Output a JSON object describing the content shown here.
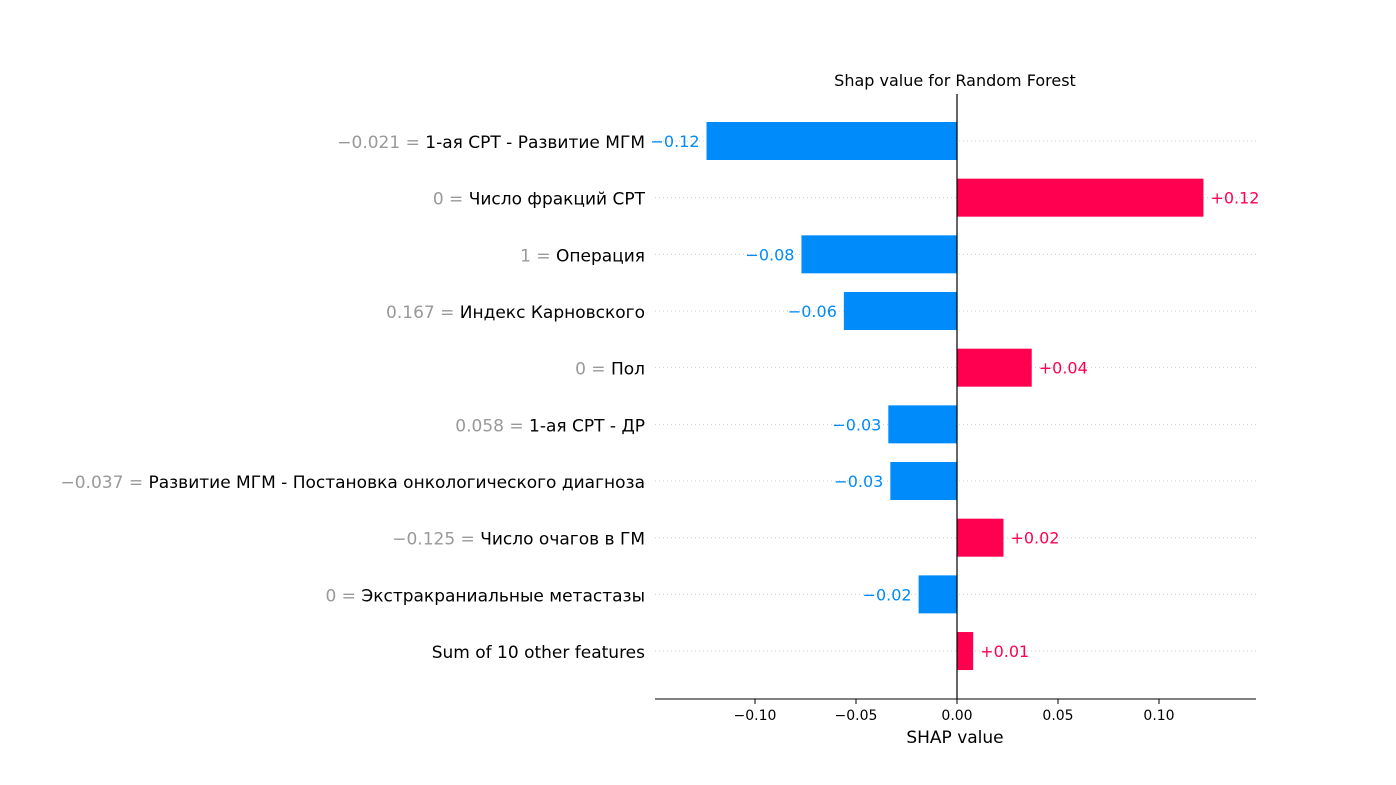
{
  "chart_data": {
    "type": "bar",
    "title": "Shap value for Random Forest",
    "xlabel": "SHAP value",
    "xlim": [
      -0.149,
      0.149
    ],
    "xticks": [
      -0.1,
      -0.05,
      0.0,
      0.05,
      0.1
    ],
    "xtick_labels": [
      "−0.10",
      "−0.05",
      "0.00",
      "0.05",
      "0.10"
    ],
    "features": [
      {
        "value_text": "−0.021 = ",
        "name": "1-ая СРТ - Развитие МГМ",
        "shap": -0.124,
        "label": "−0.12"
      },
      {
        "value_text": "0 = ",
        "name": "Число фракций СРТ",
        "shap": 0.122,
        "label": "+0.12"
      },
      {
        "value_text": "1 = ",
        "name": "Операция",
        "shap": -0.077,
        "label": "−0.08"
      },
      {
        "value_text": "0.167 = ",
        "name": "Индекс Карновского",
        "shap": -0.056,
        "label": "−0.06"
      },
      {
        "value_text": "0 = ",
        "name": "Пол",
        "shap": 0.037,
        "label": "+0.04"
      },
      {
        "value_text": "0.058 = ",
        "name": "1-ая СРТ - ДР",
        "shap": -0.034,
        "label": "−0.03"
      },
      {
        "value_text": "−0.037 = ",
        "name": "Развитие МГМ - Постановка онкологического диагноза",
        "shap": -0.033,
        "label": "−0.03"
      },
      {
        "value_text": "−0.125 = ",
        "name": "Число очагов в ГМ",
        "shap": 0.023,
        "label": "+0.02"
      },
      {
        "value_text": "0 = ",
        "name": "Экстракраниальные метастазы",
        "shap": -0.019,
        "label": "−0.02"
      },
      {
        "value_text": "",
        "name": "Sum of 10 other features",
        "shap": 0.008,
        "label": "+0.01"
      }
    ],
    "colors": {
      "positive": "#ff0051",
      "negative": "#008bfb",
      "feature_value": "#999999"
    },
    "grid": "dotted horizontal"
  }
}
